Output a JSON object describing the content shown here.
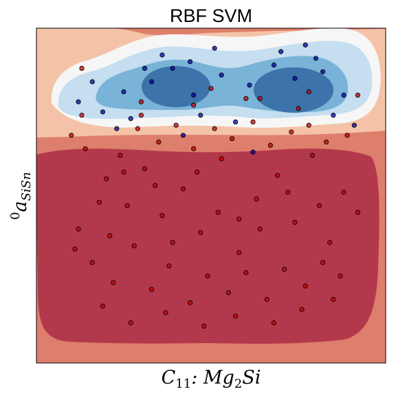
{
  "chart_data": {
    "type": "scatter",
    "title": "RBF SVM",
    "xlabel_main": "C",
    "xlabel_sub": "11",
    "xlabel_rest": ": Mg",
    "xlabel_sub2": "2",
    "xlabel_tail": "Si",
    "ylabel_sup": "0",
    "ylabel_main": "a",
    "ylabel_sub": "SiSn",
    "xlim": [
      0,
      1
    ],
    "ylim": [
      0,
      1
    ],
    "ticks_visible": false,
    "grid": false,
    "background_regions": [
      {
        "level": "deep-red",
        "color": "#b2394b"
      },
      {
        "level": "red",
        "color": "#de7e6c"
      },
      {
        "level": "light-salmon",
        "color": "#f4c3a7"
      },
      {
        "level": "white",
        "color": "#f6f6f6"
      },
      {
        "level": "light-blue",
        "color": "#c5def0"
      },
      {
        "level": "mid-blue",
        "color": "#79b3d7"
      },
      {
        "level": "dark-blue",
        "color": "#3d73ab"
      }
    ],
    "series": [
      {
        "class_color": "#c00000",
        "points": [
          [
            0.1,
            0.68
          ],
          [
            0.14,
            0.64
          ],
          [
            0.2,
            0.55
          ],
          [
            0.26,
            0.47
          ],
          [
            0.31,
            0.58
          ],
          [
            0.36,
            0.44
          ],
          [
            0.42,
            0.52
          ],
          [
            0.47,
            0.39
          ],
          [
            0.53,
            0.61
          ],
          [
            0.58,
            0.33
          ],
          [
            0.63,
            0.49
          ],
          [
            0.69,
            0.56
          ],
          [
            0.74,
            0.42
          ],
          [
            0.79,
            0.62
          ],
          [
            0.84,
            0.36
          ],
          [
            0.88,
            0.51
          ],
          [
            0.92,
            0.45
          ],
          [
            0.16,
            0.3
          ],
          [
            0.22,
            0.24
          ],
          [
            0.28,
            0.35
          ],
          [
            0.33,
            0.22
          ],
          [
            0.38,
            0.29
          ],
          [
            0.44,
            0.18
          ],
          [
            0.49,
            0.26
          ],
          [
            0.55,
            0.21
          ],
          [
            0.6,
            0.27
          ],
          [
            0.66,
            0.19
          ],
          [
            0.71,
            0.28
          ],
          [
            0.77,
            0.23
          ],
          [
            0.82,
            0.3
          ],
          [
            0.87,
            0.26
          ],
          [
            0.12,
            0.4
          ],
          [
            0.18,
            0.48
          ],
          [
            0.24,
            0.62
          ],
          [
            0.29,
            0.7
          ],
          [
            0.35,
            0.66
          ],
          [
            0.4,
            0.71
          ],
          [
            0.45,
            0.64
          ],
          [
            0.51,
            0.7
          ],
          [
            0.56,
            0.67
          ],
          [
            0.62,
            0.72
          ],
          [
            0.67,
            0.65
          ],
          [
            0.73,
            0.69
          ],
          [
            0.78,
            0.71
          ],
          [
            0.83,
            0.66
          ],
          [
            0.89,
            0.68
          ],
          [
            0.3,
            0.78
          ],
          [
            0.45,
            0.77
          ],
          [
            0.6,
            0.79
          ],
          [
            0.75,
            0.76
          ],
          [
            0.13,
            0.74
          ],
          [
            0.11,
            0.34
          ],
          [
            0.19,
            0.17
          ],
          [
            0.27,
            0.12
          ],
          [
            0.37,
            0.15
          ],
          [
            0.48,
            0.11
          ],
          [
            0.57,
            0.14
          ],
          [
            0.68,
            0.12
          ],
          [
            0.76,
            0.16
          ],
          [
            0.85,
            0.19
          ],
          [
            0.21,
            0.38
          ],
          [
            0.34,
            0.53
          ],
          [
            0.46,
            0.57
          ],
          [
            0.52,
            0.45
          ],
          [
            0.64,
            0.4
          ],
          [
            0.72,
            0.51
          ],
          [
            0.81,
            0.47
          ],
          [
            0.39,
            0.36
          ],
          [
            0.58,
            0.43
          ],
          [
            0.25,
            0.57
          ],
          [
            0.13,
            0.88
          ],
          [
            0.3,
            0.74
          ],
          [
            0.64,
            0.79
          ],
          [
            0.78,
            0.81
          ],
          [
            0.92,
            0.8
          ],
          [
            0.5,
            0.82
          ]
        ]
      },
      {
        "class_color": "#0000a0",
        "points": [
          [
            0.12,
            0.78
          ],
          [
            0.19,
            0.75
          ],
          [
            0.25,
            0.81
          ],
          [
            0.33,
            0.84
          ],
          [
            0.39,
            0.88
          ],
          [
            0.45,
            0.8
          ],
          [
            0.53,
            0.86
          ],
          [
            0.61,
            0.83
          ],
          [
            0.68,
            0.89
          ],
          [
            0.74,
            0.85
          ],
          [
            0.82,
            0.87
          ],
          [
            0.88,
            0.8
          ],
          [
            0.36,
            0.92
          ],
          [
            0.44,
            0.9
          ],
          [
            0.7,
            0.93
          ],
          [
            0.8,
            0.91
          ],
          [
            0.27,
            0.73
          ],
          [
            0.47,
            0.74
          ],
          [
            0.57,
            0.72
          ],
          [
            0.85,
            0.74
          ],
          [
            0.62,
            0.63
          ],
          [
            0.42,
            0.68
          ],
          [
            0.23,
            0.7
          ],
          [
            0.91,
            0.71
          ],
          [
            0.31,
            0.88
          ],
          [
            0.51,
            0.94
          ],
          [
            0.77,
            0.95
          ],
          [
            0.16,
            0.84
          ]
        ]
      }
    ]
  }
}
